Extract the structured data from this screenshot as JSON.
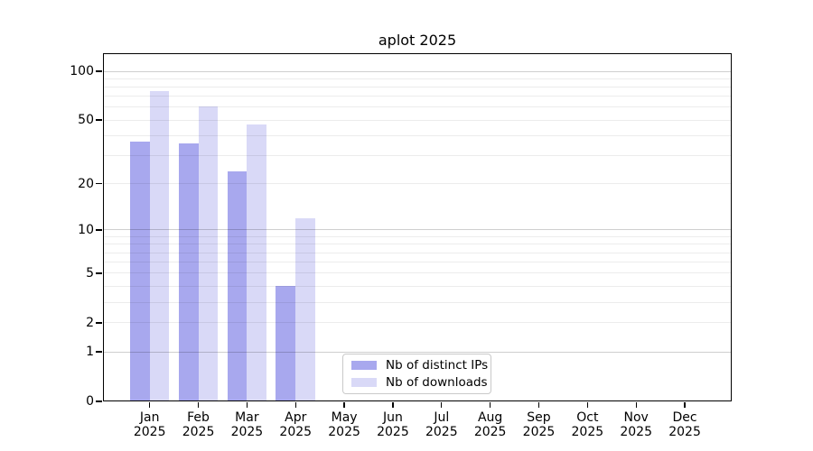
{
  "chart_data": {
    "type": "bar",
    "title": "aplot 2025",
    "months": [
      "Jan",
      "Feb",
      "Mar",
      "Apr",
      "May",
      "Jun",
      "Jul",
      "Aug",
      "Sep",
      "Oct",
      "Nov",
      "Dec"
    ],
    "year": "2025",
    "series": [
      {
        "name": "Nb of distinct IPs",
        "color": "#a8a8ee",
        "values": [
          37,
          36,
          24,
          4,
          null,
          null,
          null,
          null,
          null,
          null,
          null,
          null
        ]
      },
      {
        "name": "Nb of downloads",
        "color": "#d9d9f7",
        "values": [
          76,
          61,
          47,
          12,
          null,
          null,
          null,
          null,
          null,
          null,
          null,
          null
        ]
      }
    ],
    "y_ticks": [
      0,
      1,
      2,
      5,
      10,
      20,
      50,
      100
    ],
    "y_scale": "log(1+v)",
    "ylim": [
      0,
      129
    ],
    "grid": {
      "major_values": [
        1,
        10,
        100
      ],
      "minor_values": [
        2,
        3,
        4,
        5,
        6,
        7,
        8,
        9,
        20,
        30,
        40,
        50,
        60,
        70,
        80,
        90
      ]
    },
    "legend_position": "lower-center",
    "colors": {
      "major_grid": "rgba(0,0,0,0.19)",
      "minor_grid": "rgba(0,0,0,0.075)",
      "axis": "#000000"
    }
  }
}
